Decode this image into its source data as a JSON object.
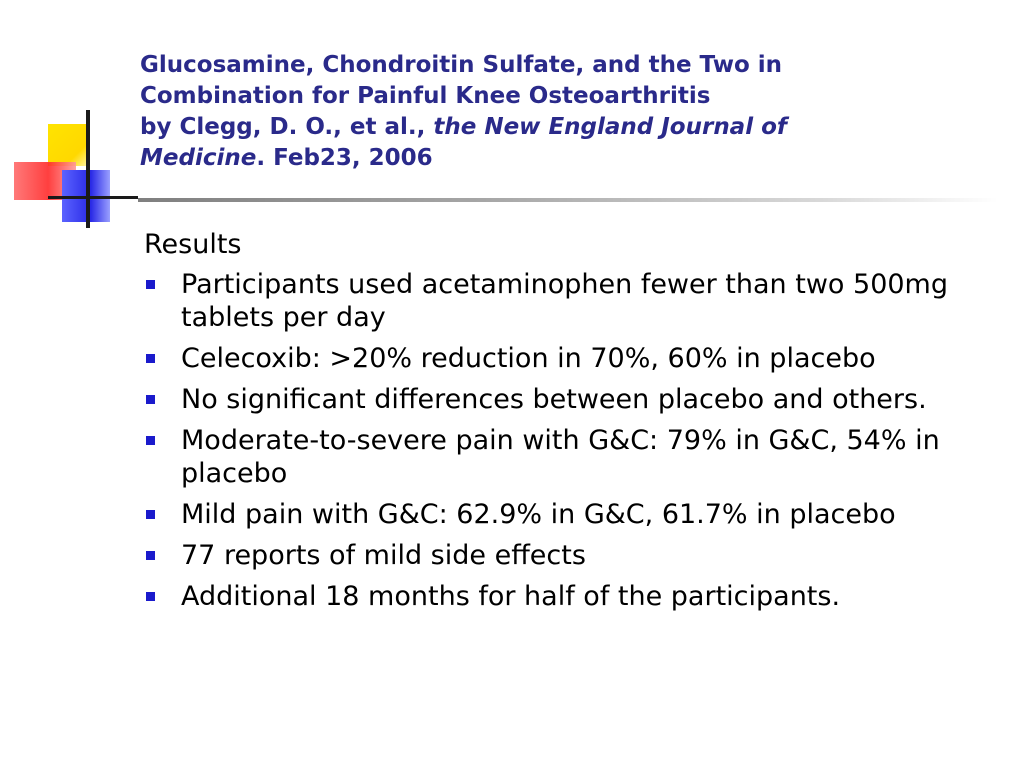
{
  "title": {
    "line1": "Glucosamine, Chondroitin Sulfate, and the Two in",
    "line2": "Combination for Painful Knee Osteoarthritis",
    "line3_prefix": "by Clegg, D. O., et al., ",
    "line3_journal": "the New England Journal of",
    "line4_journal": "Medicine",
    "line4_suffix": ". Feb23, 2006"
  },
  "content": {
    "heading": "Results",
    "bullets": [
      "Participants used acetaminophen fewer than two 500mg tablets per day",
      "Celecoxib: >20% reduction in 70%, 60% in placebo",
      "No significant differences between placebo and others.",
      "Moderate-to-severe pain with G&C: 79% in G&C, 54% in placebo",
      "Mild pain with G&C: 62.9% in G&C, 61.7% in placebo",
      "77 reports of mild side effects",
      "Additional 18 months for half of the participants."
    ]
  },
  "colors": {
    "title": "#2a2a8a",
    "bullet": "#1a1acc",
    "body_text": "#000000"
  }
}
